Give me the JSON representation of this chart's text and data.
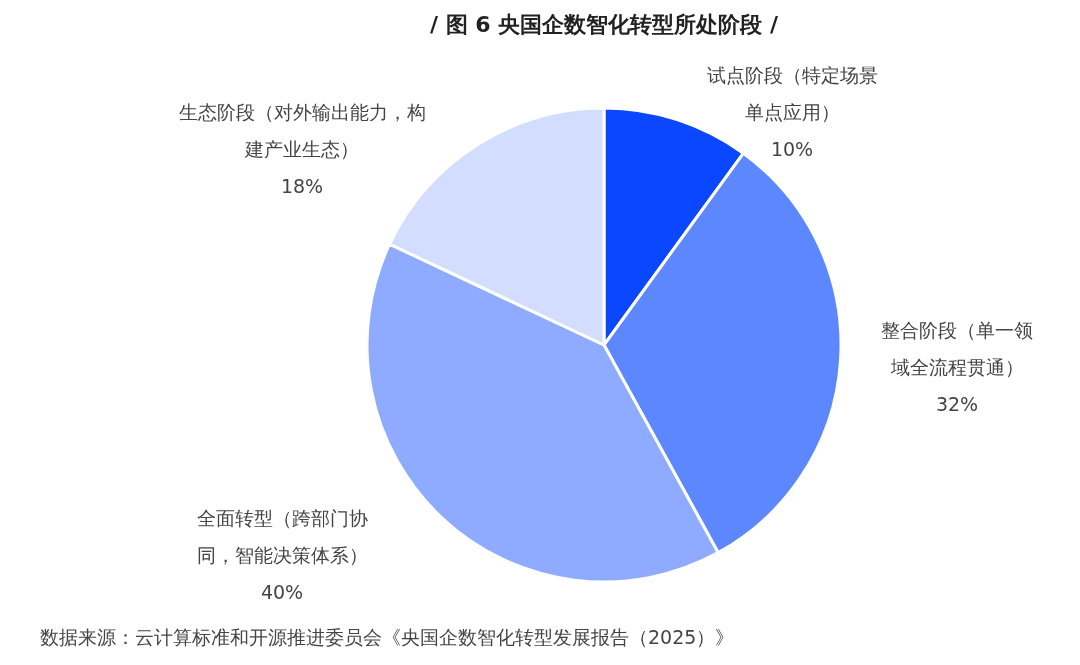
{
  "chart_data": {
    "type": "pie",
    "title": "/ 图 6 央国企数智化转型所处阶段 /",
    "categories": [
      "试点阶段（特定场景单点应用）",
      "整合阶段（单一领域全流程贯通）",
      "全面转型（跨部门协同，智能决策体系）",
      "生态阶段（对外输出能力，构建产业生态）"
    ],
    "values": [
      10,
      32,
      40,
      18
    ],
    "colors": [
      "#0a47ff",
      "#5c87ff",
      "#8eabff",
      "#d2ddff"
    ],
    "value_labels": [
      "10%",
      "32%",
      "40%",
      "18%"
    ],
    "annotations": [
      "数据来源：云计算标准和开源推进委员会《央国企数智化转型发展报告（2025）》"
    ]
  }
}
